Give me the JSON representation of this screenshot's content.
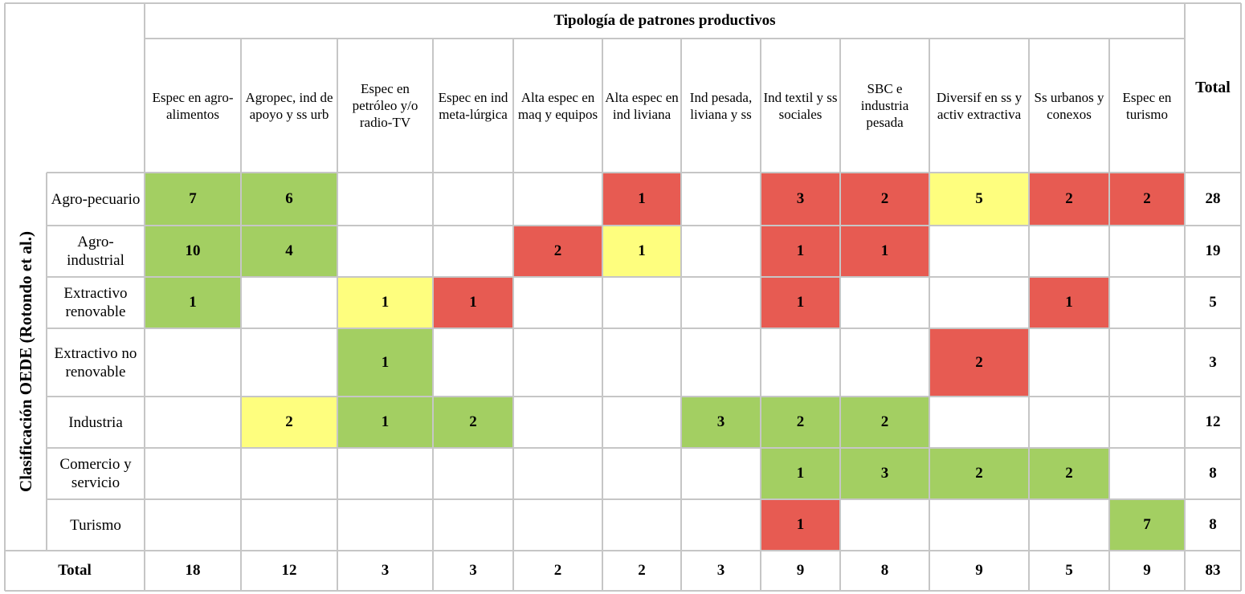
{
  "table": {
    "title": "Tipología de patrones productivos",
    "side_label": "Clasificación OEDE (Rotondo et al.)",
    "total_label": "Total",
    "columns": [
      "Espec en agro-alimentos",
      "Agropec, ind de apoyo y ss urb",
      "Espec en petróleo y/o radio-TV",
      "Espec en ind meta-lúrgica",
      "Alta espec en maq y equipos",
      "Alta espec en ind liviana",
      "Ind pesada, liviana y ss",
      "Ind textil y ss sociales",
      "SBC e industria pesada",
      "Diversif en ss y activ extractiva",
      "Ss urbanos y conexos",
      "Espec en turismo"
    ],
    "rows": [
      {
        "label": "Agro-pecuario",
        "cells": [
          "7",
          "6",
          "",
          "",
          "",
          "1",
          "",
          "3",
          "2",
          "5",
          "2",
          "2"
        ],
        "colors": [
          "g",
          "g",
          "",
          "",
          "",
          "r",
          "",
          "r",
          "r",
          "y",
          "r",
          "r"
        ],
        "total": "28"
      },
      {
        "label": "Agro-industrial",
        "cells": [
          "10",
          "4",
          "",
          "",
          "2",
          "1",
          "",
          "1",
          "1",
          "",
          "",
          ""
        ],
        "colors": [
          "g",
          "g",
          "",
          "",
          "r",
          "y",
          "",
          "r",
          "r",
          "",
          "",
          ""
        ],
        "total": "19"
      },
      {
        "label": "Extractivo renovable",
        "cells": [
          "1",
          "",
          "1",
          "1",
          "",
          "",
          "",
          "1",
          "",
          "",
          "1",
          ""
        ],
        "colors": [
          "g",
          "",
          "y",
          "r",
          "",
          "",
          "",
          "r",
          "",
          "",
          "r",
          ""
        ],
        "total": "5"
      },
      {
        "label": "Extractivo no renovable",
        "cells": [
          "",
          "",
          "1",
          "",
          "",
          "",
          "",
          "",
          "",
          "2",
          "",
          ""
        ],
        "colors": [
          "",
          "",
          "g",
          "",
          "",
          "",
          "",
          "",
          "",
          "r",
          "",
          ""
        ],
        "total": "3"
      },
      {
        "label": "Industria",
        "cells": [
          "",
          "2",
          "1",
          "2",
          "",
          "",
          "3",
          "2",
          "2",
          "",
          "",
          ""
        ],
        "colors": [
          "",
          "y",
          "g",
          "g",
          "",
          "",
          "g",
          "g",
          "g",
          "",
          "",
          ""
        ],
        "total": "12"
      },
      {
        "label": "Comercio y servicio",
        "cells": [
          "",
          "",
          "",
          "",
          "",
          "",
          "",
          "1",
          "3",
          "2",
          "2",
          ""
        ],
        "colors": [
          "",
          "",
          "",
          "",
          "",
          "",
          "",
          "g",
          "g",
          "g",
          "g",
          ""
        ],
        "total": "8"
      },
      {
        "label": "Turismo",
        "cells": [
          "",
          "",
          "",
          "",
          "",
          "",
          "",
          "1",
          "",
          "",
          "",
          "7"
        ],
        "colors": [
          "",
          "",
          "",
          "",
          "",
          "",
          "",
          "r",
          "",
          "",
          "",
          "g"
        ],
        "total": "8"
      }
    ],
    "totals_row": {
      "label": "Total",
      "values": [
        "18",
        "12",
        "3",
        "3",
        "2",
        "2",
        "3",
        "9",
        "8",
        "9",
        "5",
        "9"
      ],
      "grand_total": "83"
    },
    "colors": {
      "g": "#a3cf62",
      "r": "#e75b52",
      "y": "#fefe7e",
      "border": "#c6c6c6"
    }
  }
}
